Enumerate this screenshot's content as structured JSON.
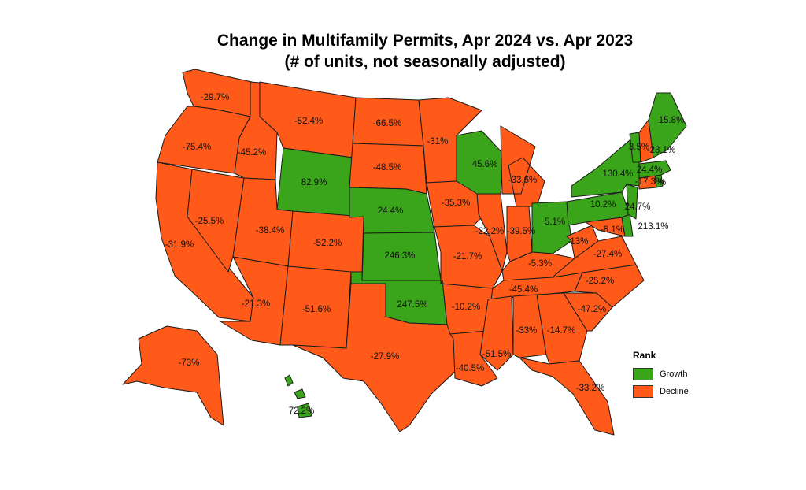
{
  "title": {
    "line1": "Change in Multifamily Permits, Apr 2024 vs. Apr 2023",
    "line2": "(# of units, not seasonally adjusted)"
  },
  "legend": {
    "title": "Rank",
    "items": [
      {
        "label": "Growth",
        "color": "#3aa51a"
      },
      {
        "label": "Decline",
        "color": "#ff5a1a"
      }
    ]
  },
  "colors": {
    "growth": "#3aa51a",
    "decline": "#ff5a1a",
    "border": "#1a1a1a"
  },
  "states": [
    {
      "id": "WA",
      "value": "-29.7%",
      "rank": "Decline"
    },
    {
      "id": "OR",
      "value": "-75.4%",
      "rank": "Decline"
    },
    {
      "id": "CA",
      "value": "-31.9%",
      "rank": "Decline"
    },
    {
      "id": "NV",
      "value": "-25.5%",
      "rank": "Decline"
    },
    {
      "id": "ID",
      "value": "-45.2%",
      "rank": "Decline"
    },
    {
      "id": "MT",
      "value": "-52.4%",
      "rank": "Decline"
    },
    {
      "id": "WY",
      "value": "82.9%",
      "rank": "Growth"
    },
    {
      "id": "UT",
      "value": "-38.4%",
      "rank": "Decline"
    },
    {
      "id": "AZ",
      "value": "-21.3%",
      "rank": "Decline"
    },
    {
      "id": "CO",
      "value": "-52.2%",
      "rank": "Decline"
    },
    {
      "id": "NM",
      "value": "-51.6%",
      "rank": "Decline"
    },
    {
      "id": "ND",
      "value": "-66.5%",
      "rank": "Decline"
    },
    {
      "id": "SD",
      "value": "-48.5%",
      "rank": "Decline"
    },
    {
      "id": "NE",
      "value": "24.4%",
      "rank": "Growth"
    },
    {
      "id": "KS",
      "value": "246.3%",
      "rank": "Growth"
    },
    {
      "id": "OK",
      "value": "247.5%",
      "rank": "Growth"
    },
    {
      "id": "TX",
      "value": "-27.9%",
      "rank": "Decline"
    },
    {
      "id": "MN",
      "value": "-31%",
      "rank": "Decline"
    },
    {
      "id": "IA",
      "value": "-35.3%",
      "rank": "Decline"
    },
    {
      "id": "MO",
      "value": "-21.7%",
      "rank": "Decline"
    },
    {
      "id": "AR",
      "value": "-10.2%",
      "rank": "Decline"
    },
    {
      "id": "LA",
      "value": "-40.5%",
      "rank": "Decline"
    },
    {
      "id": "WI",
      "value": "45.6%",
      "rank": "Growth"
    },
    {
      "id": "IL",
      "value": "-22.2%",
      "rank": "Decline"
    },
    {
      "id": "MI",
      "value": "-33.6%",
      "rank": "Decline"
    },
    {
      "id": "IN",
      "value": "-39.5%",
      "rank": "Decline"
    },
    {
      "id": "OH",
      "value": "5.1%",
      "rank": "Growth"
    },
    {
      "id": "KY",
      "value": "-5.3%",
      "rank": "Decline"
    },
    {
      "id": "TN",
      "value": "-45.4%",
      "rank": "Decline"
    },
    {
      "id": "MS",
      "value": "-51.5%",
      "rank": "Decline"
    },
    {
      "id": "AL",
      "value": "-33%",
      "rank": "Decline"
    },
    {
      "id": "GA",
      "value": "-14.7%",
      "rank": "Decline"
    },
    {
      "id": "FL",
      "value": "-33.2%",
      "rank": "Decline"
    },
    {
      "id": "SC",
      "value": "-47.2%",
      "rank": "Decline"
    },
    {
      "id": "NC",
      "value": "-25.2%",
      "rank": "Decline"
    },
    {
      "id": "VA",
      "value": "-27.4%",
      "rank": "Decline"
    },
    {
      "id": "WV",
      "value": "-13%",
      "rank": "Decline"
    },
    {
      "id": "MD",
      "value": "-8.1%",
      "rank": "Decline"
    },
    {
      "id": "DE",
      "value": "213.1%",
      "rank": "Growth"
    },
    {
      "id": "PA",
      "value": "10.2%",
      "rank": "Growth"
    },
    {
      "id": "NJ",
      "value": "24.7%",
      "rank": "Growth"
    },
    {
      "id": "NY",
      "value": "130.4%",
      "rank": "Growth"
    },
    {
      "id": "CT",
      "value": "-17.3%",
      "rank": "Decline"
    },
    {
      "id": "RI",
      "value": "%",
      "rank": "Growth"
    },
    {
      "id": "MA",
      "value": "24.4%",
      "rank": "Growth"
    },
    {
      "id": "VT",
      "value": "3.5%",
      "rank": "Growth"
    },
    {
      "id": "NH",
      "value": "-23.1%",
      "rank": "Decline"
    },
    {
      "id": "ME",
      "value": "15.8%",
      "rank": "Growth"
    },
    {
      "id": "AK",
      "value": "-73%",
      "rank": "Decline"
    },
    {
      "id": "HI",
      "value": "72.2%",
      "rank": "Growth"
    }
  ]
}
